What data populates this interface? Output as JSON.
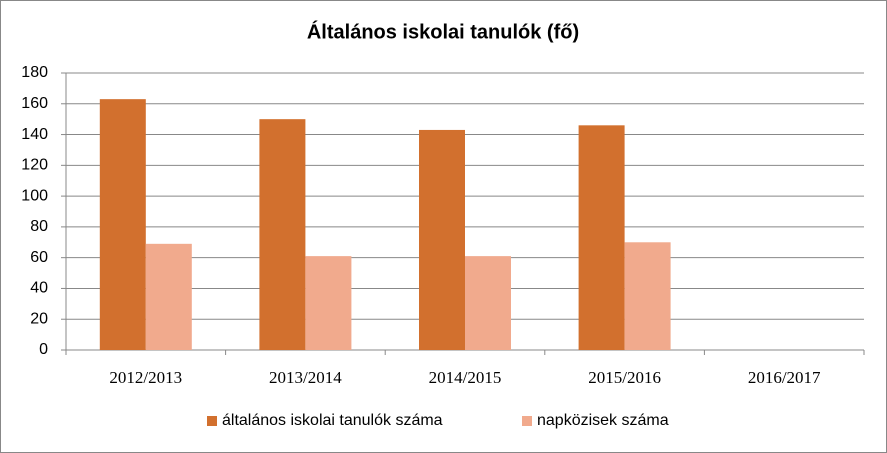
{
  "chart_data": {
    "type": "bar",
    "title": "Általános iskolai tanulók (fő)",
    "categories": [
      "2012/2013",
      "2013/2014",
      "2014/2015",
      "2015/2016",
      "2016/2017"
    ],
    "series": [
      {
        "name": "általános iskolai tanulók száma",
        "color": "#d2702e",
        "values": [
          163,
          150,
          143,
          146,
          null
        ]
      },
      {
        "name": "napközisek száma",
        "color": "#f1aa8d",
        "values": [
          69,
          61,
          61,
          70,
          null
        ]
      }
    ],
    "ylim": [
      0,
      180
    ],
    "yticks": [
      0,
      20,
      40,
      60,
      80,
      100,
      120,
      140,
      160,
      180
    ],
    "grid": true,
    "legend": "bottom"
  }
}
